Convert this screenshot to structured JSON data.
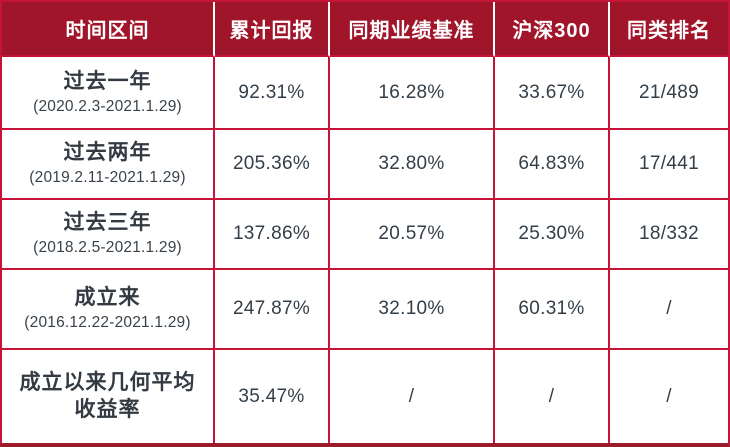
{
  "chart_data": {
    "type": "table",
    "columns": [
      "时间区间",
      "累计回报",
      "同期业绩基准",
      "沪深300",
      "同类排名"
    ],
    "rows": [
      {
        "period": "过去一年",
        "dates": "(2020.2.3-2021.1.29)",
        "values": [
          "92.31%",
          "16.28%",
          "33.67%",
          "21/489"
        ]
      },
      {
        "period": "过去两年",
        "dates": "(2019.2.11-2021.1.29)",
        "values": [
          "205.36%",
          "32.80%",
          "64.83%",
          "17/441"
        ]
      },
      {
        "period": "过去三年",
        "dates": "(2018.2.5-2021.1.29)",
        "values": [
          "137.86%",
          "20.57%",
          "25.30%",
          "18/332"
        ]
      },
      {
        "period": "成立来",
        "dates": "(2016.12.22-2021.1.29)",
        "values": [
          "247.87%",
          "32.10%",
          "60.31%",
          "/"
        ]
      },
      {
        "period": "成立以来几何平均收益率",
        "dates": "",
        "values": [
          "35.47%",
          "/",
          "/",
          "/"
        ]
      }
    ]
  },
  "colors": {
    "header_bg": "#A1152B",
    "grid_line": "#C41438",
    "bottom_border": "#9C1B2D",
    "header_divider": "#FFFFFF",
    "header_text": "#FFFFFF",
    "body_text": "#333E48"
  }
}
